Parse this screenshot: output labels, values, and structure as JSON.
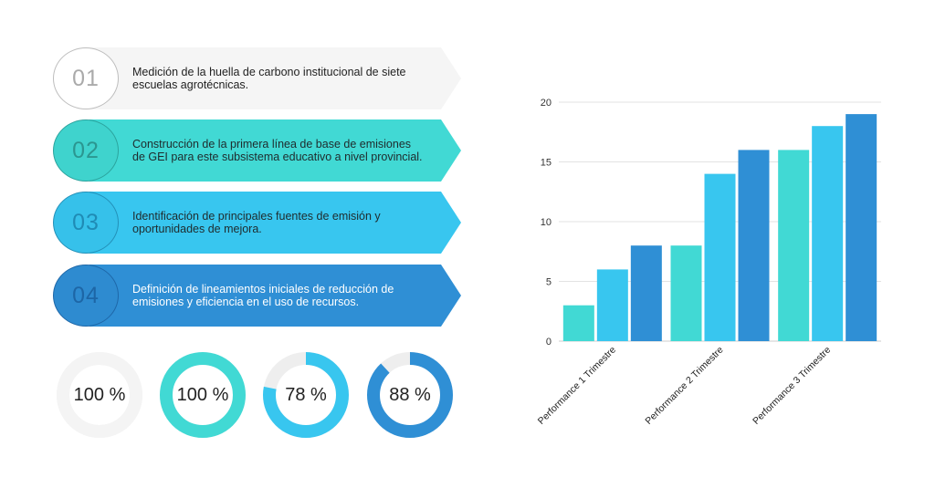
{
  "steps": [
    {
      "number": "01",
      "text": "Medición de la huella de carbono institucional de siete escuelas agrotécnicas.",
      "color": "#f5f5f5",
      "text_color": "#222222",
      "badge_color": "#bdbdbd"
    },
    {
      "number": "02",
      "text": "Construcción de la primera línea de base de emisiones de GEI para este subsistema educativo a nivel provincial.",
      "color": "#41d9d4",
      "text_color": "#1f2b2d",
      "badge_color": "#2ba39d"
    },
    {
      "number": "03",
      "text": "Identificación de principales fuentes de emisión y oportunidades de mejora.",
      "color": "#38c6ef",
      "text_color": "#1f2b2d",
      "badge_color": "#2390b8"
    },
    {
      "number": "04",
      "text": "Definición de lineamientos iniciales de reducción de emisiones y eficiencia en el uso de recursos.",
      "color": "#2f8fd5",
      "text_color": "#ffffff",
      "badge_color": "#1e67a8"
    }
  ],
  "donuts": [
    {
      "label": "100 %",
      "percent": 100,
      "color": "#f4f4f4"
    },
    {
      "label": "100 %",
      "percent": 100,
      "color": "#41d9d4"
    },
    {
      "label": "78 %",
      "percent": 78,
      "color": "#38c6ef"
    },
    {
      "label": "88 %",
      "percent": 88,
      "color": "#2f8fd5"
    }
  ],
  "chart_data": {
    "type": "bar",
    "categories": [
      "Performance 1 Trimestre",
      "Performance 2 Trimestre",
      "Performance 3 Trimestre"
    ],
    "series": [
      {
        "values": [
          3,
          8,
          16
        ],
        "color": "#41d9d4"
      },
      {
        "values": [
          6,
          14,
          18
        ],
        "color": "#38c6ef"
      },
      {
        "values": [
          8,
          16,
          19
        ],
        "color": "#2f8fd5"
      }
    ],
    "yticks": [
      0,
      5,
      10,
      15,
      20
    ],
    "ylim": [
      0,
      20
    ],
    "grid": true,
    "title": "",
    "xlabel": "",
    "ylabel": ""
  }
}
